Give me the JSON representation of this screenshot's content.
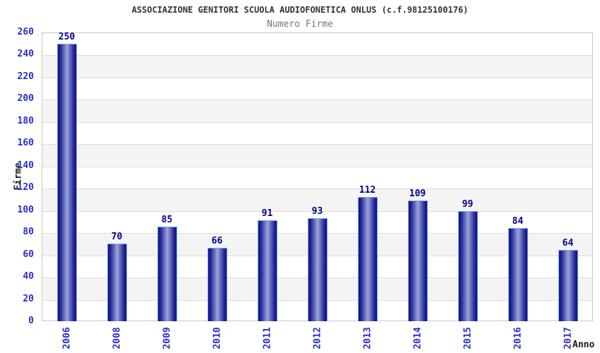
{
  "header": {
    "title": "ASSOCIAZIONE GENITORI SCUOLA AUDIOFONETICA ONLUS (c.f.98125100176)",
    "subtitle": "Numero Firme"
  },
  "chart_data": {
    "type": "bar",
    "title": "ASSOCIAZIONE GENITORI SCUOLA AUDIOFONETICA ONLUS (c.f.98125100176)",
    "subtitle": "Numero Firme",
    "categories": [
      "2006",
      "2008",
      "2009",
      "2010",
      "2011",
      "2012",
      "2013",
      "2014",
      "2015",
      "2016",
      "2017"
    ],
    "values": [
      250,
      70,
      85,
      66,
      91,
      93,
      112,
      109,
      99,
      84,
      64
    ],
    "xlabel": "Anno",
    "ylabel": "Firme",
    "ylim": [
      0,
      260
    ],
    "ytick_step": 20,
    "grid": true,
    "legend_position": "none",
    "colors": {
      "bar_edge": "#12127a",
      "bar_center": "#9aa6d8",
      "bar_border": "#6aabf0",
      "axis_tick_label": "#2a2ad0",
      "value_label": "#00008b",
      "band_fill": "#f4f4f4",
      "gridline": "#dcdcdc",
      "plot_border": "#c8c8c8",
      "title_color": "#333333",
      "subtitle_color": "#767676"
    }
  }
}
